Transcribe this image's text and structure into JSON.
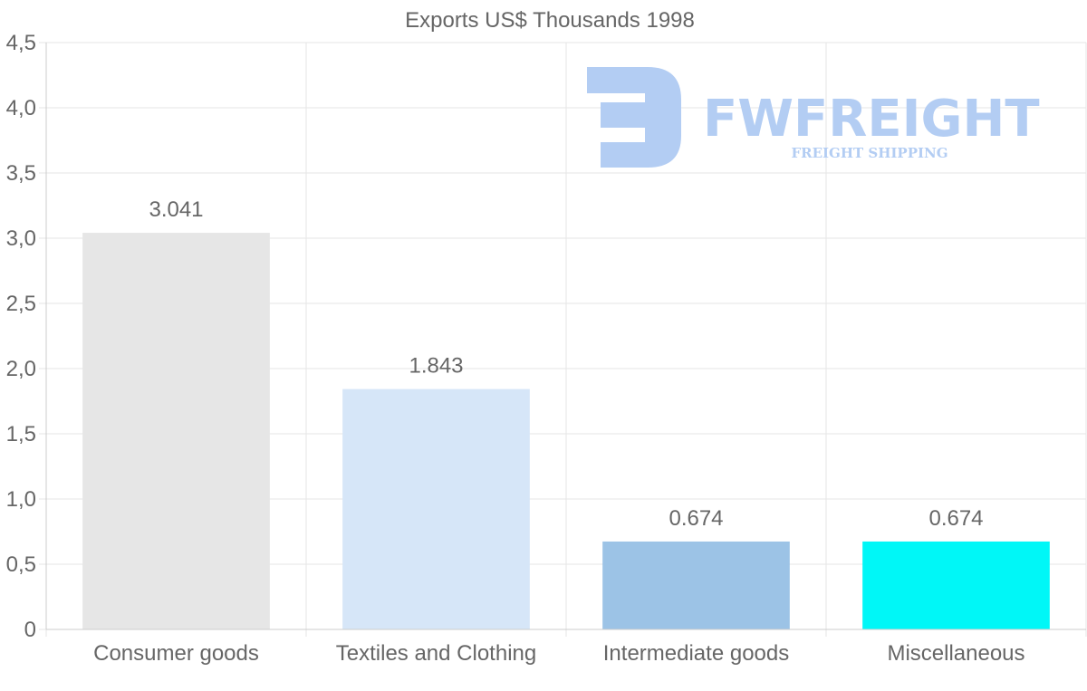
{
  "chart_data": {
    "type": "bar",
    "title": "Exports US$ Thousands 1998",
    "categories": [
      "Consumer goods",
      "Textiles and Clothing",
      "Intermediate goods",
      "Miscellaneous"
    ],
    "values": [
      3.041,
      1.843,
      0.674,
      0.674
    ],
    "value_labels": [
      "3.041",
      "1.843",
      "0.674",
      "0.674"
    ],
    "bar_colors": [
      "#e6e6e6",
      "#d6e6f8",
      "#9cc3e6",
      "#00f7f7"
    ],
    "ylim": [
      0,
      4.5
    ],
    "yticks": [
      0,
      0.5,
      1.0,
      1.5,
      2.0,
      2.5,
      3.0,
      3.5,
      4.0,
      4.5
    ],
    "ytick_labels": [
      "0",
      "0,5",
      "1,0",
      "1,5",
      "2,0",
      "2,5",
      "3,0",
      "3,5",
      "4,0",
      "4,5"
    ],
    "xlabel": "",
    "ylabel": "",
    "grid": true,
    "legend": "none"
  },
  "watermark": {
    "brand": "FWFREIGHT",
    "tagline": "FREIGHT SHIPPING",
    "color": "#b3cdf3"
  }
}
